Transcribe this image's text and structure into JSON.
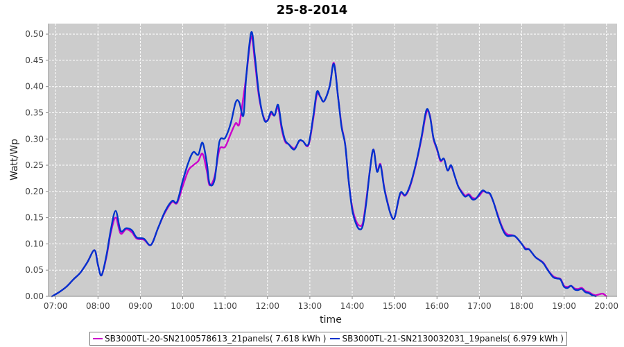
{
  "chart_data": {
    "type": "line",
    "title": "25-8-2014",
    "xlabel": "time",
    "ylabel": "Watt/Wp",
    "x_ticks": [
      "07:00",
      "08:00",
      "09:00",
      "10:00",
      "11:00",
      "12:00",
      "13:00",
      "14:00",
      "15:00",
      "16:00",
      "17:00",
      "18:00",
      "19:00",
      "20:00"
    ],
    "y_ticks": [
      "0.00",
      "0.05",
      "0.10",
      "0.15",
      "0.20",
      "0.25",
      "0.30",
      "0.35",
      "0.40",
      "0.45",
      "0.50"
    ],
    "xlim": [
      "06:50",
      "20:15"
    ],
    "ylim": [
      0,
      0.52
    ],
    "grid": true,
    "legend_position": "bottom",
    "series": [
      {
        "name": "SB3000TL-20-SN2100578613_21panels( 7.618 kWh )",
        "color": "#cc00cc",
        "points": [
          [
            "06:55",
            0.0
          ],
          [
            "07:05",
            0.008
          ],
          [
            "07:15",
            0.018
          ],
          [
            "07:25",
            0.032
          ],
          [
            "07:35",
            0.045
          ],
          [
            "07:45",
            0.065
          ],
          [
            "07:55",
            0.088
          ],
          [
            "08:00",
            0.06
          ],
          [
            "08:05",
            0.04
          ],
          [
            "08:12",
            0.075
          ],
          [
            "08:18",
            0.12
          ],
          [
            "08:25",
            0.15
          ],
          [
            "08:32",
            0.12
          ],
          [
            "08:40",
            0.128
          ],
          [
            "08:48",
            0.122
          ],
          [
            "08:55",
            0.11
          ],
          [
            "09:05",
            0.108
          ],
          [
            "09:15",
            0.098
          ],
          [
            "09:25",
            0.13
          ],
          [
            "09:35",
            0.16
          ],
          [
            "09:45",
            0.18
          ],
          [
            "09:52",
            0.178
          ],
          [
            "10:00",
            0.21
          ],
          [
            "10:08",
            0.24
          ],
          [
            "10:15",
            0.25
          ],
          [
            "10:22",
            0.258
          ],
          [
            "10:28",
            0.272
          ],
          [
            "10:34",
            0.24
          ],
          [
            "10:38",
            0.212
          ],
          [
            "10:45",
            0.228
          ],
          [
            "10:52",
            0.28
          ],
          [
            "11:00",
            0.285
          ],
          [
            "11:08",
            0.31
          ],
          [
            "11:15",
            0.33
          ],
          [
            "11:20",
            0.328
          ],
          [
            "11:26",
            0.38
          ],
          [
            "11:30",
            0.42
          ],
          [
            "11:37",
            0.495
          ],
          [
            "11:42",
            0.45
          ],
          [
            "11:48",
            0.38
          ],
          [
            "11:55",
            0.34
          ],
          [
            "12:00",
            0.335
          ],
          [
            "12:05",
            0.348
          ],
          [
            "12:10",
            0.345
          ],
          [
            "12:15",
            0.36
          ],
          [
            "12:20",
            0.32
          ],
          [
            "12:25",
            0.295
          ],
          [
            "12:30",
            0.29
          ],
          [
            "12:38",
            0.282
          ],
          [
            "12:45",
            0.296
          ],
          [
            "12:50",
            0.296
          ],
          [
            "12:58",
            0.288
          ],
          [
            "13:05",
            0.34
          ],
          [
            "13:10",
            0.385
          ],
          [
            "13:15",
            0.38
          ],
          [
            "13:20",
            0.372
          ],
          [
            "13:28",
            0.4
          ],
          [
            "13:34",
            0.445
          ],
          [
            "13:40",
            0.38
          ],
          [
            "13:45",
            0.325
          ],
          [
            "13:50",
            0.29
          ],
          [
            "13:55",
            0.22
          ],
          [
            "14:00",
            0.17
          ],
          [
            "14:05",
            0.145
          ],
          [
            "14:10",
            0.135
          ],
          [
            "14:15",
            0.14
          ],
          [
            "14:20",
            0.185
          ],
          [
            "14:25",
            0.24
          ],
          [
            "14:30",
            0.28
          ],
          [
            "14:35",
            0.24
          ],
          [
            "14:40",
            0.252
          ],
          [
            "14:45",
            0.21
          ],
          [
            "14:50",
            0.18
          ],
          [
            "14:55",
            0.155
          ],
          [
            "15:00",
            0.15
          ],
          [
            "15:08",
            0.195
          ],
          [
            "15:15",
            0.192
          ],
          [
            "15:22",
            0.21
          ],
          [
            "15:30",
            0.25
          ],
          [
            "15:38",
            0.3
          ],
          [
            "15:45",
            0.35
          ],
          [
            "15:50",
            0.345
          ],
          [
            "15:55",
            0.3
          ],
          [
            "16:00",
            0.28
          ],
          [
            "16:05",
            0.258
          ],
          [
            "16:10",
            0.262
          ],
          [
            "16:15",
            0.24
          ],
          [
            "16:20",
            0.248
          ],
          [
            "16:25",
            0.23
          ],
          [
            "16:30",
            0.21
          ],
          [
            "16:35",
            0.2
          ],
          [
            "16:40",
            0.192
          ],
          [
            "16:45",
            0.195
          ],
          [
            "16:50",
            0.188
          ],
          [
            "16:55",
            0.187
          ],
          [
            "17:00",
            0.192
          ],
          [
            "17:05",
            0.2
          ],
          [
            "17:10",
            0.198
          ],
          [
            "17:15",
            0.195
          ],
          [
            "17:20",
            0.18
          ],
          [
            "17:25",
            0.16
          ],
          [
            "17:30",
            0.14
          ],
          [
            "17:35",
            0.125
          ],
          [
            "17:40",
            0.118
          ],
          [
            "17:50",
            0.115
          ],
          [
            "18:00",
            0.1
          ],
          [
            "18:05",
            0.092
          ],
          [
            "18:10",
            0.09
          ],
          [
            "18:15",
            0.082
          ],
          [
            "18:20",
            0.074
          ],
          [
            "18:30",
            0.065
          ],
          [
            "18:35",
            0.055
          ],
          [
            "18:40",
            0.045
          ],
          [
            "18:45",
            0.038
          ],
          [
            "18:50",
            0.035
          ],
          [
            "18:55",
            0.033
          ],
          [
            "19:00",
            0.02
          ],
          [
            "19:05",
            0.018
          ],
          [
            "19:10",
            0.02
          ],
          [
            "19:15",
            0.015
          ],
          [
            "19:20",
            0.014
          ],
          [
            "19:25",
            0.016
          ],
          [
            "19:30",
            0.01
          ],
          [
            "19:35",
            0.008
          ],
          [
            "19:40",
            0.004
          ],
          [
            "19:45",
            0.002
          ],
          [
            "19:50",
            0.004
          ],
          [
            "19:55",
            0.005
          ],
          [
            "20:00",
            0.0
          ]
        ]
      },
      {
        "name": "SB3000TL-21-SN2130032031_19panels( 6.979 kWh )",
        "color": "#0033cc",
        "points": [
          [
            "06:55",
            0.0
          ],
          [
            "07:05",
            0.008
          ],
          [
            "07:15",
            0.018
          ],
          [
            "07:25",
            0.032
          ],
          [
            "07:35",
            0.045
          ],
          [
            "07:45",
            0.065
          ],
          [
            "07:55",
            0.088
          ],
          [
            "08:00",
            0.06
          ],
          [
            "08:05",
            0.04
          ],
          [
            "08:12",
            0.078
          ],
          [
            "08:18",
            0.125
          ],
          [
            "08:25",
            0.163
          ],
          [
            "08:32",
            0.125
          ],
          [
            "08:40",
            0.13
          ],
          [
            "08:48",
            0.126
          ],
          [
            "08:55",
            0.112
          ],
          [
            "09:05",
            0.11
          ],
          [
            "09:15",
            0.098
          ],
          [
            "09:25",
            0.13
          ],
          [
            "09:35",
            0.162
          ],
          [
            "09:45",
            0.182
          ],
          [
            "09:52",
            0.18
          ],
          [
            "10:00",
            0.22
          ],
          [
            "10:08",
            0.255
          ],
          [
            "10:15",
            0.275
          ],
          [
            "10:22",
            0.27
          ],
          [
            "10:28",
            0.293
          ],
          [
            "10:34",
            0.255
          ],
          [
            "10:38",
            0.215
          ],
          [
            "10:45",
            0.222
          ],
          [
            "10:52",
            0.295
          ],
          [
            "11:00",
            0.302
          ],
          [
            "11:08",
            0.33
          ],
          [
            "11:15",
            0.37
          ],
          [
            "11:20",
            0.37
          ],
          [
            "11:26",
            0.345
          ],
          [
            "11:30",
            0.42
          ],
          [
            "11:37",
            0.503
          ],
          [
            "11:42",
            0.46
          ],
          [
            "11:48",
            0.385
          ],
          [
            "11:55",
            0.338
          ],
          [
            "12:00",
            0.335
          ],
          [
            "12:05",
            0.352
          ],
          [
            "12:10",
            0.345
          ],
          [
            "12:15",
            0.365
          ],
          [
            "12:20",
            0.325
          ],
          [
            "12:25",
            0.298
          ],
          [
            "12:30",
            0.29
          ],
          [
            "12:38",
            0.28
          ],
          [
            "12:45",
            0.297
          ],
          [
            "12:50",
            0.296
          ],
          [
            "12:58",
            0.29
          ],
          [
            "13:05",
            0.345
          ],
          [
            "13:10",
            0.39
          ],
          [
            "13:15",
            0.38
          ],
          [
            "13:20",
            0.372
          ],
          [
            "13:28",
            0.4
          ],
          [
            "13:34",
            0.443
          ],
          [
            "13:40",
            0.38
          ],
          [
            "13:45",
            0.322
          ],
          [
            "13:50",
            0.29
          ],
          [
            "13:55",
            0.22
          ],
          [
            "14:00",
            0.165
          ],
          [
            "14:05",
            0.14
          ],
          [
            "14:10",
            0.128
          ],
          [
            "14:15",
            0.135
          ],
          [
            "14:20",
            0.18
          ],
          [
            "14:25",
            0.24
          ],
          [
            "14:30",
            0.28
          ],
          [
            "14:35",
            0.238
          ],
          [
            "14:40",
            0.25
          ],
          [
            "14:45",
            0.208
          ],
          [
            "14:50",
            0.178
          ],
          [
            "14:55",
            0.155
          ],
          [
            "15:00",
            0.15
          ],
          [
            "15:08",
            0.197
          ],
          [
            "15:15",
            0.193
          ],
          [
            "15:22",
            0.212
          ],
          [
            "15:30",
            0.252
          ],
          [
            "15:38",
            0.303
          ],
          [
            "15:45",
            0.355
          ],
          [
            "15:50",
            0.343
          ],
          [
            "15:55",
            0.302
          ],
          [
            "16:00",
            0.282
          ],
          [
            "16:05",
            0.26
          ],
          [
            "16:10",
            0.262
          ],
          [
            "16:15",
            0.24
          ],
          [
            "16:20",
            0.25
          ],
          [
            "16:25",
            0.23
          ],
          [
            "16:30",
            0.21
          ],
          [
            "16:35",
            0.198
          ],
          [
            "16:40",
            0.19
          ],
          [
            "16:45",
            0.193
          ],
          [
            "16:50",
            0.185
          ],
          [
            "16:55",
            0.186
          ],
          [
            "17:00",
            0.195
          ],
          [
            "17:05",
            0.202
          ],
          [
            "17:10",
            0.198
          ],
          [
            "17:15",
            0.196
          ],
          [
            "17:20",
            0.18
          ],
          [
            "17:25",
            0.158
          ],
          [
            "17:30",
            0.138
          ],
          [
            "17:35",
            0.122
          ],
          [
            "17:40",
            0.115
          ],
          [
            "17:50",
            0.115
          ],
          [
            "18:00",
            0.1
          ],
          [
            "18:05",
            0.09
          ],
          [
            "18:10",
            0.09
          ],
          [
            "18:15",
            0.082
          ],
          [
            "18:20",
            0.074
          ],
          [
            "18:30",
            0.064
          ],
          [
            "18:35",
            0.054
          ],
          [
            "18:40",
            0.044
          ],
          [
            "18:45",
            0.036
          ],
          [
            "18:50",
            0.034
          ],
          [
            "18:55",
            0.032
          ],
          [
            "19:00",
            0.018
          ],
          [
            "19:05",
            0.016
          ],
          [
            "19:10",
            0.02
          ],
          [
            "19:15",
            0.013
          ],
          [
            "19:20",
            0.012
          ],
          [
            "19:25",
            0.014
          ],
          [
            "19:30",
            0.008
          ],
          [
            "19:35",
            0.006
          ],
          [
            "19:40",
            0.002
          ],
          [
            "19:45",
            0.0
          ]
        ]
      }
    ]
  }
}
